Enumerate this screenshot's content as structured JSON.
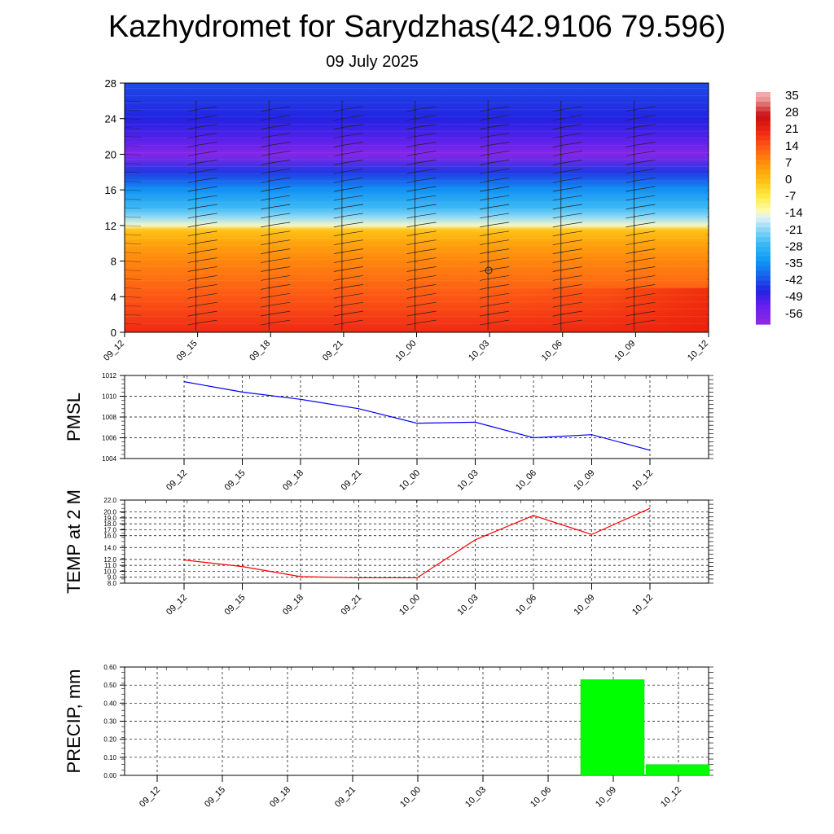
{
  "title": "Kazhydromet for Sarydzhas(42.9106 79.596)",
  "date": "09 July 2025",
  "colors": {
    "pmsl_line": "#0000ff",
    "temp_line": "#ff0000",
    "precip_bar": "#00ff00",
    "grid": "#000000"
  },
  "chart_data": [
    {
      "type": "heatmap",
      "id": "cross-section",
      "x_categories": [
        "09_12",
        "09_15",
        "09_18",
        "09_21",
        "10_00",
        "10_03",
        "10_06",
        "10_09",
        "10_12"
      ],
      "yticks": [
        0,
        4,
        8,
        12,
        16,
        20,
        24,
        28
      ],
      "ylim": [
        0,
        28
      ],
      "values_note": "",
      "profile_y": [
        0,
        2,
        4,
        6,
        8,
        10,
        11.5,
        12,
        13,
        14,
        16,
        18,
        20,
        22,
        24,
        26,
        28
      ],
      "profile_values": [
        21,
        18,
        15,
        12,
        9,
        5,
        0,
        -13,
        -20,
        -26,
        -34,
        -44,
        -58,
        -50,
        -46,
        -44,
        -42
      ],
      "colorbar": {
        "labels": [
          "35",
          "28",
          "21",
          "14",
          "7",
          "0",
          "-7",
          "-14",
          "-21",
          "-28",
          "-35",
          "-42",
          "-49",
          "-56"
        ],
        "range": [
          -60,
          38
        ]
      },
      "wind_barbs": true
    },
    {
      "type": "line",
      "id": "pmsl",
      "ylabel": "PMSL",
      "categories": [
        "09_12",
        "09_15",
        "09_18",
        "09_21",
        "10_00",
        "10_03",
        "10_06",
        "10_09",
        "10_12"
      ],
      "values": [
        1011.4,
        1010.4,
        1009.7,
        1008.8,
        1007.4,
        1007.5,
        1006.0,
        1006.3,
        1004.8
      ],
      "yticks": [
        "1004",
        "1006",
        "1008",
        "1010",
        "1012"
      ],
      "ylim": [
        1004,
        1012
      ],
      "grid": true
    },
    {
      "type": "line",
      "id": "temp",
      "ylabel": "TEMP at 2 M",
      "categories": [
        "09_12",
        "09_15",
        "09_18",
        "09_21",
        "10_00",
        "10_03",
        "10_06",
        "10_09",
        "10_12"
      ],
      "values": [
        11.9,
        10.8,
        9.1,
        8.9,
        8.9,
        15.3,
        19.4,
        16.2,
        20.6
      ],
      "yticks": [
        "8.0",
        "9.0",
        "10.0",
        "11.0",
        "12.0",
        "14.0",
        "16.0",
        "17.0",
        "18.0",
        "19.0",
        "20.0",
        "22.0"
      ],
      "ylim": [
        8,
        22
      ],
      "grid": true
    },
    {
      "type": "bar",
      "id": "precip",
      "ylabel": "PRECIP, mm",
      "categories": [
        "09_12",
        "09_15",
        "09_18",
        "09_21",
        "10_00",
        "10_03",
        "10_06",
        "10_09",
        "10_12"
      ],
      "values": [
        0,
        0,
        0,
        0,
        0,
        0,
        0,
        0.53,
        0.06
      ],
      "yticks": [
        "0.00",
        "0.10",
        "0.20",
        "0.30",
        "0.40",
        "0.50",
        "0.60"
      ],
      "ylim": [
        0,
        0.6
      ],
      "grid": true
    }
  ]
}
